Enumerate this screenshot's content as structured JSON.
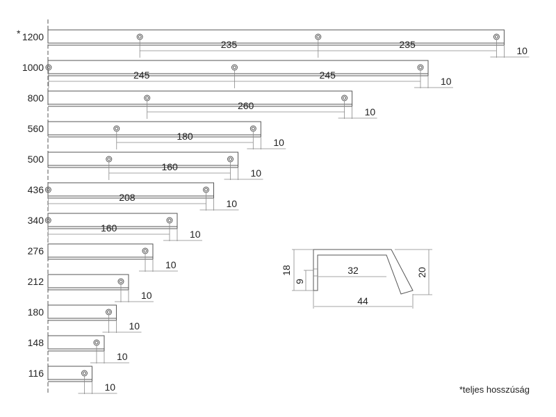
{
  "asterisk": "*",
  "footnote": "*teljes hosszúság",
  "end_offset": "10",
  "rows": [
    {
      "length": "1200",
      "length_mm": 1200,
      "spacings": [
        235,
        235
      ]
    },
    {
      "length": "1000",
      "length_mm": 1000,
      "spacings": [
        245,
        245
      ]
    },
    {
      "length": "800",
      "length_mm": 800,
      "spacings": [
        260
      ]
    },
    {
      "length": "560",
      "length_mm": 560,
      "spacings": [
        180
      ]
    },
    {
      "length": "500",
      "length_mm": 500,
      "spacings": [
        160
      ]
    },
    {
      "length": "436",
      "length_mm": 436,
      "spacings": [
        208
      ]
    },
    {
      "length": "340",
      "length_mm": 340,
      "spacings": [
        160
      ]
    },
    {
      "length": "276",
      "length_mm": 276,
      "spacings": []
    },
    {
      "length": "212",
      "length_mm": 212,
      "spacings": []
    },
    {
      "length": "180",
      "length_mm": 180,
      "spacings": []
    },
    {
      "length": "148",
      "length_mm": 148,
      "spacings": []
    },
    {
      "length": "116",
      "length_mm": 116,
      "spacings": []
    }
  ],
  "profile": {
    "height": "18",
    "hole_height": "9",
    "inner_width": "32",
    "total_width": "44",
    "lip_height": "20"
  }
}
